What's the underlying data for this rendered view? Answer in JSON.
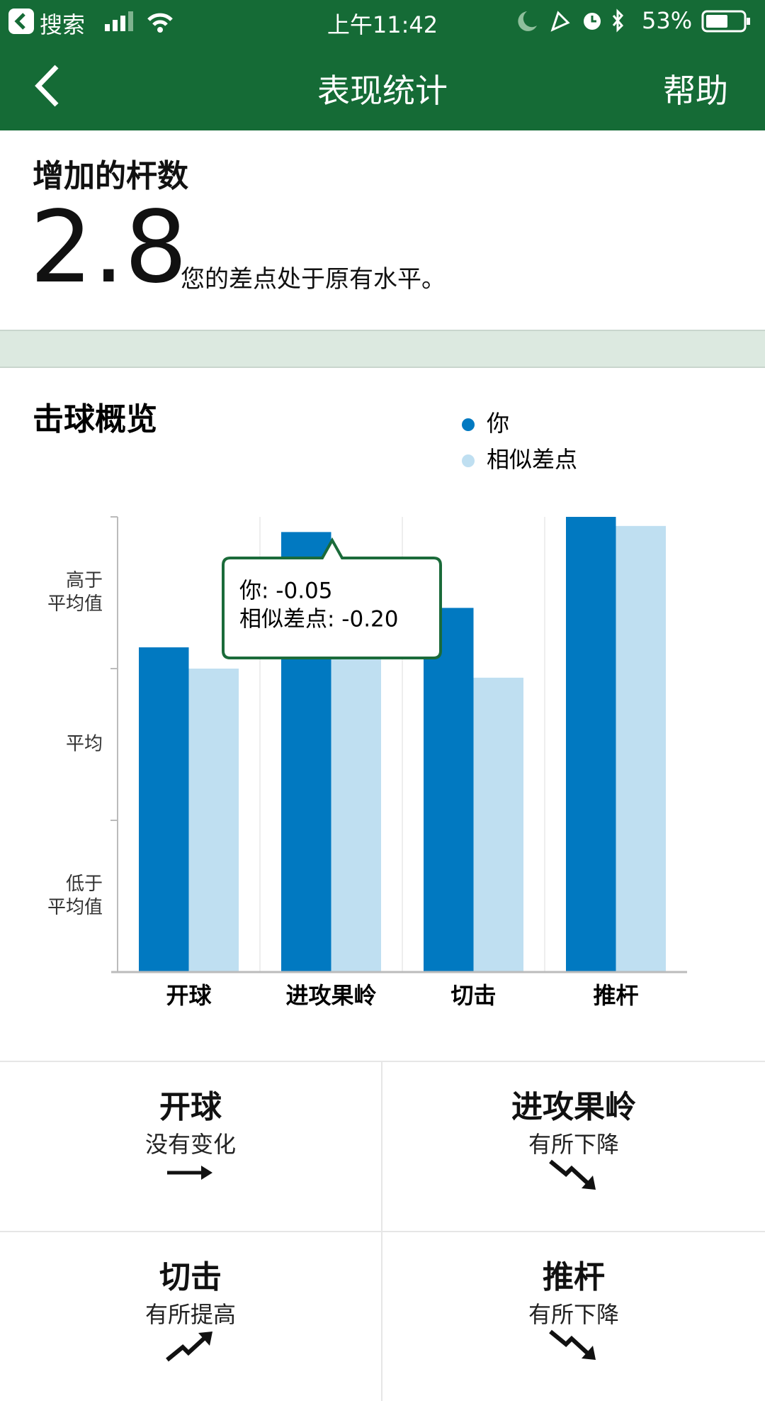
{
  "status_bar": {
    "back_app": "搜索",
    "time": "上午11:42",
    "battery": "53%"
  },
  "nav": {
    "title": "表现统计",
    "help": "帮助"
  },
  "summary": {
    "title": "增加的杆数",
    "value": "2.8",
    "description": "您的差点处于原有水平。"
  },
  "chart_data": {
    "type": "bar",
    "title": "击球概览",
    "categories": [
      "开球",
      "进攻果岭",
      "切击",
      "推杆"
    ],
    "series": [
      {
        "name": "你",
        "color": "#0179c1",
        "values": [
          -0.43,
          -0.05,
          -0.3,
          0
        ]
      },
      {
        "name": "相似差点",
        "color": "#bfdff1",
        "values": [
          -0.5,
          -0.2,
          -0.53,
          -0.03
        ]
      }
    ],
    "ylim": [
      -1.5,
      0
    ],
    "yticks": [
      {
        "value": -0.25,
        "label": [
          "高于",
          "平均值"
        ]
      },
      {
        "value": -0.75,
        "label": [
          "平均"
        ]
      },
      {
        "value": -1.25,
        "label": [
          "低于",
          "平均值"
        ]
      }
    ],
    "tooltip": {
      "lines": [
        "你: -0.05",
        "相似差点: -0.20"
      ]
    }
  },
  "cards": [
    {
      "title": "开球",
      "status": "没有变化"
    },
    {
      "title": "进攻果岭",
      "status": "有所下降"
    },
    {
      "title": "切击",
      "status": "有所提高"
    },
    {
      "title": "推杆",
      "status": "有所下降"
    }
  ]
}
